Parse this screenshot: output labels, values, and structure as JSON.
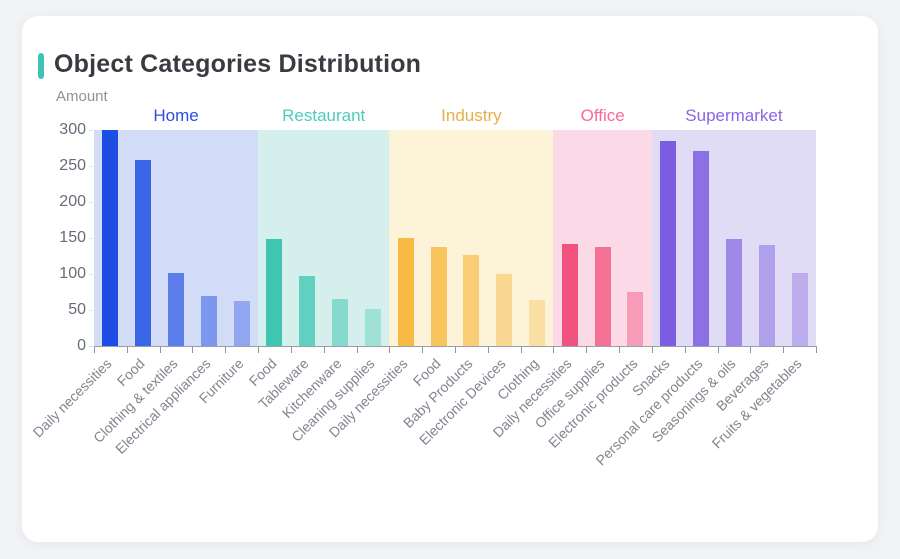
{
  "page": {
    "background": "#f2f3f5"
  },
  "header": {
    "title": "Object Categories Distribution",
    "accent_color": "#3ec3b6"
  },
  "chart_data": {
    "type": "bar",
    "title": "Object Categories Distribution",
    "xlabel": "",
    "ylabel": "Amount",
    "ylim": [
      0,
      300
    ],
    "yticks": [
      0,
      50,
      100,
      150,
      200,
      250,
      300
    ],
    "grid": false,
    "legend_position": "top-band-labels",
    "axis_color": "#9a9ea7",
    "groups": [
      {
        "name": "Home",
        "bar_color": "#1d4de4",
        "band_color": "#d3dcf7",
        "label_color": "#2b50e0",
        "items": [
          {
            "label": "Daily necessities",
            "value": 300
          },
          {
            "label": "Food",
            "value": 258
          },
          {
            "label": "Clothing & textiles",
            "value": 102
          },
          {
            "label": "Electrical appliances",
            "value": 69
          },
          {
            "label": "Furniture",
            "value": 63
          }
        ]
      },
      {
        "name": "Restaurant",
        "bar_color": "#3ec6b2",
        "band_color": "#d5f0ec",
        "label_color": "#4ccdbb",
        "items": [
          {
            "label": "Food",
            "value": 148
          },
          {
            "label": "Tableware",
            "value": 97
          },
          {
            "label": "Kitchenware",
            "value": 65
          },
          {
            "label": "Cleaning supplies",
            "value": 51
          }
        ]
      },
      {
        "name": "Industry",
        "bar_color": "#f7bb45",
        "band_color": "#fdf3d8",
        "label_color": "#e9ad49",
        "items": [
          {
            "label": "Daily necessities",
            "value": 150
          },
          {
            "label": "Food",
            "value": 138
          },
          {
            "label": "Baby Products",
            "value": 126
          },
          {
            "label": "Electronic Devices",
            "value": 100
          },
          {
            "label": "Clothing",
            "value": 64
          }
        ]
      },
      {
        "name": "Office",
        "bar_color": "#f2537e",
        "band_color": "#fbd9e6",
        "label_color": "#f7699a",
        "items": [
          {
            "label": "Daily necessities",
            "value": 142
          },
          {
            "label": "Office supplies",
            "value": 138
          },
          {
            "label": "Electronic products",
            "value": 75
          }
        ]
      },
      {
        "name": "Supermarket",
        "bar_color": "#7c5ce0",
        "band_color": "#e1dcf5",
        "label_color": "#8b64e8",
        "items": [
          {
            "label": "Snacks",
            "value": 285
          },
          {
            "label": "Personal care products",
            "value": 271
          },
          {
            "label": "Seasonings & oils",
            "value": 148
          },
          {
            "label": "Beverages",
            "value": 140
          },
          {
            "label": "Fruits & vegetables",
            "value": 101
          }
        ]
      }
    ]
  }
}
